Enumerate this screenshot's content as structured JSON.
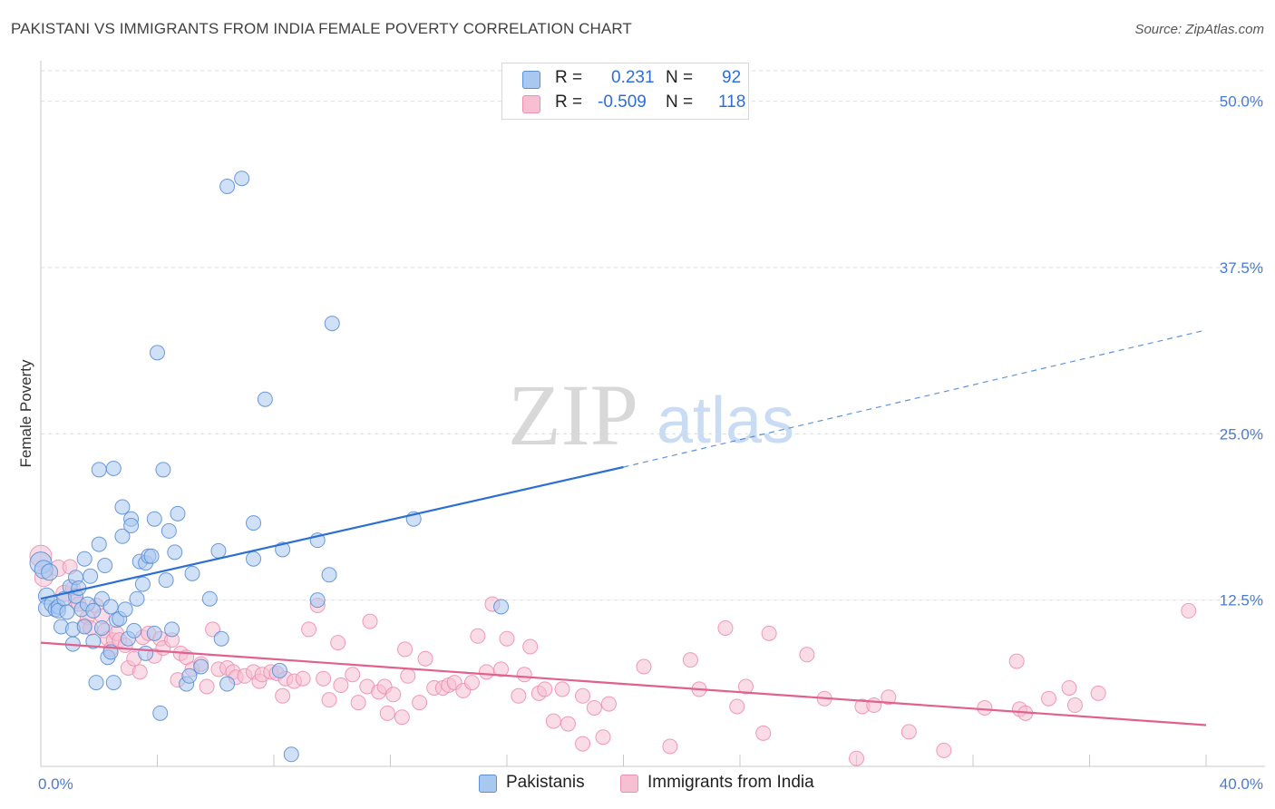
{
  "title": "PAKISTANI VS IMMIGRANTS FROM INDIA FEMALE POVERTY CORRELATION CHART",
  "source": "Source: ZipAtlas.com",
  "watermark": {
    "zip": "ZIP",
    "atlas": "atlas"
  },
  "colors": {
    "blue_fill": "#a9c8f0",
    "blue_stroke": "#5b8fd6",
    "blue_line": "#2c6fd0",
    "pink_fill": "#f6c0d2",
    "pink_stroke": "#ee8fb0",
    "pink_line": "#e0608e",
    "grid": "#dddddd",
    "axis_label": "#4a7bd0"
  },
  "legend": {
    "r_label": "R =",
    "n_label": "N =",
    "rows": [
      {
        "r": "0.231",
        "n": "92"
      },
      {
        "r": "-0.509",
        "n": "118"
      }
    ]
  },
  "chart_data": {
    "type": "scatter",
    "title": "PAKISTANI VS IMMIGRANTS FROM INDIA FEMALE POVERTY CORRELATION CHART",
    "xlabel": "",
    "ylabel": "Female Poverty",
    "xlim": [
      0,
      40
    ],
    "ylim": [
      0,
      52.5
    ],
    "x_tick_labels": [
      "0.0%",
      "40.0%"
    ],
    "y_ticks": [
      12.5,
      25.0,
      37.5,
      50.0
    ],
    "y_tick_labels": [
      "12.5%",
      "25.0%",
      "37.5%",
      "50.0%"
    ],
    "grid": true,
    "legend_position": "bottom",
    "series": [
      {
        "name": "Pakistanis",
        "r": 0.231,
        "n": 92,
        "trend": {
          "x0": 0,
          "y0": 12.6,
          "x1": 20,
          "y1": 22.5,
          "dashed_to_x": 40,
          "dashed_to_y": 32.8
        },
        "points": [
          [
            0.0,
            15.3,
            20
          ],
          [
            0.1,
            14.8,
            16
          ],
          [
            0.2,
            12.8,
            14
          ],
          [
            0.2,
            11.9,
            14
          ],
          [
            0.3,
            14.6,
            14
          ],
          [
            0.4,
            12.2,
            14
          ],
          [
            0.5,
            11.8,
            12
          ],
          [
            0.6,
            12.0,
            12
          ],
          [
            0.6,
            11.7,
            12
          ],
          [
            0.7,
            10.5,
            12
          ],
          [
            0.8,
            12.6,
            12
          ],
          [
            0.9,
            11.6,
            12
          ],
          [
            1.0,
            13.5,
            12
          ],
          [
            1.1,
            10.3,
            12
          ],
          [
            1.1,
            9.2,
            12
          ],
          [
            1.2,
            14.2,
            12
          ],
          [
            1.2,
            12.8,
            12
          ],
          [
            1.3,
            13.4,
            12
          ],
          [
            1.4,
            11.8,
            12
          ],
          [
            1.5,
            10.5,
            12
          ],
          [
            1.5,
            15.6,
            12
          ],
          [
            1.6,
            12.2,
            12
          ],
          [
            1.7,
            14.3,
            12
          ],
          [
            1.8,
            11.7,
            12
          ],
          [
            1.8,
            9.4,
            12
          ],
          [
            1.9,
            6.3,
            12
          ],
          [
            2.0,
            22.3,
            12
          ],
          [
            2.0,
            16.7,
            12
          ],
          [
            2.1,
            12.6,
            12
          ],
          [
            2.1,
            10.4,
            12
          ],
          [
            2.2,
            15.1,
            12
          ],
          [
            2.3,
            8.2,
            12
          ],
          [
            2.4,
            8.6,
            12
          ],
          [
            2.4,
            12.0,
            12
          ],
          [
            2.5,
            22.4,
            12
          ],
          [
            2.5,
            6.3,
            12
          ],
          [
            2.6,
            11.0,
            12
          ],
          [
            2.7,
            11.1,
            12
          ],
          [
            2.8,
            19.5,
            12
          ],
          [
            2.8,
            17.3,
            12
          ],
          [
            2.9,
            11.8,
            12
          ],
          [
            3.0,
            9.6,
            12
          ],
          [
            3.1,
            18.6,
            12
          ],
          [
            3.1,
            18.1,
            12
          ],
          [
            3.2,
            10.2,
            12
          ],
          [
            3.3,
            12.6,
            12
          ],
          [
            3.4,
            15.4,
            12
          ],
          [
            3.5,
            13.7,
            12
          ],
          [
            3.6,
            8.5,
            12
          ],
          [
            3.6,
            15.3,
            12
          ],
          [
            3.7,
            15.8,
            12
          ],
          [
            3.8,
            15.8,
            12
          ],
          [
            3.9,
            18.6,
            12
          ],
          [
            3.9,
            10.0,
            12
          ],
          [
            4.0,
            31.1,
            12
          ],
          [
            4.1,
            4.0,
            12
          ],
          [
            4.2,
            22.3,
            12
          ],
          [
            4.3,
            14.0,
            12
          ],
          [
            4.4,
            17.7,
            12
          ],
          [
            4.5,
            10.3,
            12
          ],
          [
            4.6,
            16.1,
            12
          ],
          [
            4.7,
            19.0,
            12
          ],
          [
            5.0,
            6.2,
            12
          ],
          [
            5.1,
            6.8,
            12
          ],
          [
            5.2,
            14.5,
            12
          ],
          [
            5.5,
            7.5,
            12
          ],
          [
            5.8,
            12.6,
            12
          ],
          [
            6.1,
            16.2,
            12
          ],
          [
            6.2,
            9.6,
            12
          ],
          [
            6.4,
            43.6,
            12
          ],
          [
            6.4,
            6.2,
            12
          ],
          [
            6.9,
            44.2,
            12
          ],
          [
            7.3,
            15.6,
            12
          ],
          [
            7.3,
            18.3,
            12
          ],
          [
            7.7,
            27.6,
            12
          ],
          [
            8.2,
            7.2,
            12
          ],
          [
            8.3,
            16.3,
            12
          ],
          [
            8.6,
            0.9,
            12
          ],
          [
            9.5,
            17.0,
            12
          ],
          [
            9.5,
            12.5,
            12
          ],
          [
            9.9,
            14.4,
            12
          ],
          [
            10.0,
            33.3,
            12
          ],
          [
            12.8,
            18.6,
            12
          ],
          [
            15.8,
            12.0,
            12
          ]
        ]
      },
      {
        "name": "Immigrants from India",
        "r": -0.509,
        "n": 118,
        "trend": {
          "x0": 0,
          "y0": 9.3,
          "x1": 40,
          "y1": 3.1
        },
        "points": [
          [
            0.0,
            15.8,
            20
          ],
          [
            0.1,
            14.2,
            16
          ],
          [
            0.6,
            14.9,
            14
          ],
          [
            0.8,
            13.0,
            14
          ],
          [
            1.0,
            15.0,
            12
          ],
          [
            1.1,
            13.4,
            12
          ],
          [
            1.2,
            12.4,
            12
          ],
          [
            1.3,
            12.2,
            12
          ],
          [
            1.5,
            10.6,
            12
          ],
          [
            1.6,
            11.2,
            12
          ],
          [
            1.7,
            10.4,
            12
          ],
          [
            1.9,
            12.1,
            12
          ],
          [
            2.1,
            11.3,
            12
          ],
          [
            2.2,
            10.2,
            12
          ],
          [
            2.3,
            9.6,
            12
          ],
          [
            2.4,
            8.8,
            12
          ],
          [
            2.5,
            9.5,
            12
          ],
          [
            2.6,
            10.0,
            12
          ],
          [
            2.7,
            9.5,
            12
          ],
          [
            2.9,
            9.1,
            12
          ],
          [
            3.0,
            7.4,
            12
          ],
          [
            3.2,
            8.1,
            12
          ],
          [
            3.4,
            7.1,
            12
          ],
          [
            3.5,
            9.7,
            12
          ],
          [
            3.7,
            10.0,
            12
          ],
          [
            3.9,
            8.3,
            12
          ],
          [
            4.1,
            9.6,
            12
          ],
          [
            4.2,
            8.9,
            12
          ],
          [
            4.5,
            9.5,
            12
          ],
          [
            4.7,
            6.5,
            12
          ],
          [
            4.8,
            8.5,
            12
          ],
          [
            5.0,
            8.2,
            12
          ],
          [
            5.2,
            7.3,
            12
          ],
          [
            5.5,
            7.7,
            12
          ],
          [
            5.7,
            6.0,
            12
          ],
          [
            5.9,
            10.3,
            12
          ],
          [
            6.1,
            7.3,
            12
          ],
          [
            6.4,
            7.4,
            12
          ],
          [
            6.6,
            7.1,
            12
          ],
          [
            6.7,
            6.7,
            12
          ],
          [
            7.0,
            6.8,
            12
          ],
          [
            7.3,
            7.1,
            12
          ],
          [
            7.5,
            6.4,
            12
          ],
          [
            7.6,
            6.9,
            12
          ],
          [
            7.9,
            7.1,
            12
          ],
          [
            8.1,
            7.0,
            12
          ],
          [
            8.3,
            5.3,
            12
          ],
          [
            8.4,
            6.6,
            12
          ],
          [
            8.7,
            6.4,
            12
          ],
          [
            9.0,
            6.6,
            12
          ],
          [
            9.2,
            10.3,
            12
          ],
          [
            9.5,
            12.1,
            12
          ],
          [
            9.7,
            6.6,
            12
          ],
          [
            9.9,
            5.0,
            12
          ],
          [
            10.2,
            9.3,
            12
          ],
          [
            10.3,
            6.1,
            12
          ],
          [
            10.7,
            6.9,
            12
          ],
          [
            10.9,
            4.8,
            12
          ],
          [
            11.2,
            6.0,
            12
          ],
          [
            11.3,
            10.9,
            12
          ],
          [
            11.6,
            5.6,
            12
          ],
          [
            11.8,
            6.0,
            12
          ],
          [
            11.9,
            4.0,
            12
          ],
          [
            12.1,
            5.4,
            12
          ],
          [
            12.4,
            3.7,
            12
          ],
          [
            12.6,
            6.8,
            12
          ],
          [
            12.5,
            8.8,
            12
          ],
          [
            13.0,
            4.8,
            12
          ],
          [
            13.2,
            8.1,
            12
          ],
          [
            13.5,
            5.9,
            12
          ],
          [
            13.8,
            5.9,
            12
          ],
          [
            14.0,
            6.1,
            12
          ],
          [
            14.2,
            6.3,
            12
          ],
          [
            14.5,
            5.7,
            12
          ],
          [
            14.8,
            6.3,
            12
          ],
          [
            15.0,
            9.8,
            12
          ],
          [
            15.3,
            7.1,
            12
          ],
          [
            15.5,
            12.2,
            12
          ],
          [
            15.8,
            7.3,
            12
          ],
          [
            16.0,
            9.6,
            12
          ],
          [
            16.4,
            5.3,
            12
          ],
          [
            16.6,
            6.9,
            12
          ],
          [
            16.8,
            9.0,
            12
          ],
          [
            17.1,
            5.5,
            12
          ],
          [
            17.3,
            5.8,
            12
          ],
          [
            17.6,
            3.4,
            12
          ],
          [
            17.9,
            5.8,
            12
          ],
          [
            18.1,
            3.2,
            12
          ],
          [
            18.6,
            5.3,
            12
          ],
          [
            18.6,
            1.7,
            12
          ],
          [
            19.0,
            4.4,
            12
          ],
          [
            19.3,
            2.2,
            12
          ],
          [
            19.5,
            4.7,
            12
          ],
          [
            20.7,
            7.5,
            12
          ],
          [
            21.6,
            1.5,
            12
          ],
          [
            22.3,
            8.0,
            12
          ],
          [
            22.6,
            5.8,
            12
          ],
          [
            23.5,
            10.4,
            12
          ],
          [
            23.9,
            4.5,
            12
          ],
          [
            24.2,
            6.0,
            12
          ],
          [
            24.8,
            2.5,
            12
          ],
          [
            25.0,
            10.0,
            12
          ],
          [
            26.3,
            8.4,
            12
          ],
          [
            26.9,
            5.1,
            12
          ],
          [
            28.0,
            0.6,
            12
          ],
          [
            28.2,
            4.5,
            12
          ],
          [
            28.6,
            4.6,
            12
          ],
          [
            29.1,
            5.2,
            12
          ],
          [
            29.8,
            2.6,
            12
          ],
          [
            31.0,
            1.2,
            12
          ],
          [
            32.4,
            4.4,
            12
          ],
          [
            33.5,
            7.9,
            12
          ],
          [
            33.6,
            4.3,
            12
          ],
          [
            33.8,
            4.0,
            12
          ],
          [
            34.6,
            5.1,
            12
          ],
          [
            35.3,
            5.9,
            12
          ],
          [
            35.5,
            4.6,
            12
          ],
          [
            36.3,
            5.5,
            12
          ],
          [
            39.4,
            11.7,
            12
          ]
        ]
      }
    ]
  }
}
